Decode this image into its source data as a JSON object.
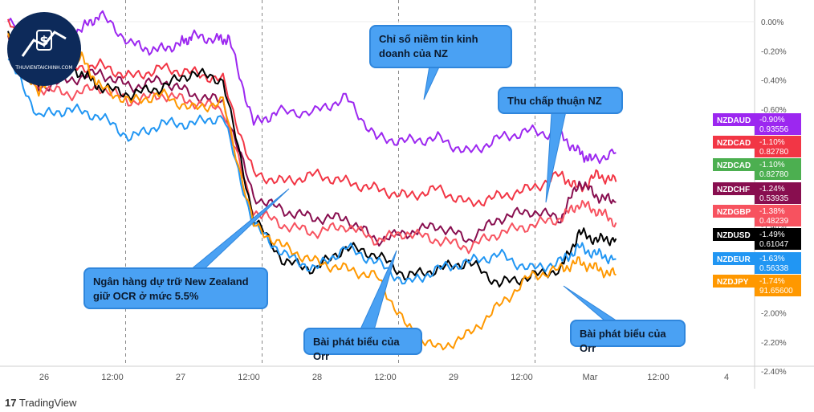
{
  "chart_data": {
    "type": "line",
    "title": "",
    "xlabel": "",
    "ylabel": "",
    "x_ticks": [
      "26",
      "12:00",
      "27",
      "12:00",
      "28",
      "12:00",
      "29",
      "12:00",
      "Mar",
      "12:00",
      "4"
    ],
    "y_ticks": [
      "0.00%",
      "-0.20%",
      "-0.40%",
      "-0.60%",
      "-0.80%",
      "-1.00%",
      "-1.20%",
      "-1.40%",
      "-1.60%",
      "-1.80%",
      "-2.00%",
      "-2.20%",
      "-2.40%"
    ],
    "ylim": [
      -2.4,
      0.05
    ],
    "x_range": [
      0,
      11
    ],
    "grid": "dashed vertical lines at each day boundary",
    "series": [
      {
        "name": "NZDAUD",
        "pct": "-0.90%",
        "price": "0.93556",
        "color": "#9c27f0",
        "x": [
          0,
          0.5,
          0.8,
          1.2,
          1.5,
          2.0,
          2.4,
          2.8,
          3.0,
          3.4,
          3.6,
          4.0,
          4.4,
          5.0,
          5.5,
          6.0,
          6.5,
          7.0,
          7.5,
          8.0,
          8.5,
          9.0,
          9.3,
          9.5,
          9.9
        ],
        "y": [
          0.0,
          -0.15,
          -0.12,
          -0.05,
          0.05,
          -0.15,
          -0.2,
          -0.15,
          -0.1,
          -0.12,
          -0.12,
          -0.7,
          -0.62,
          -0.62,
          -0.52,
          -0.8,
          -0.82,
          -0.8,
          -0.9,
          -0.8,
          -0.75,
          -0.78,
          -0.9,
          -0.95,
          -0.9
        ]
      },
      {
        "name": "NZDCAD",
        "pct": "-1.10%",
        "price": "0.82780",
        "color": "#f23645",
        "x": [
          0,
          0.5,
          1.0,
          1.5,
          2.0,
          2.5,
          3.0,
          3.5,
          4.0,
          4.5,
          5.0,
          5.5,
          6.0,
          6.5,
          7.0,
          7.5,
          8.0,
          8.5,
          9.0,
          9.3,
          9.6,
          9.9
        ],
        "y": [
          0.0,
          -0.35,
          -0.32,
          -0.3,
          -0.38,
          -0.32,
          -0.35,
          -0.4,
          -1.05,
          -1.1,
          -1.05,
          -1.1,
          -1.15,
          -1.2,
          -1.15,
          -1.25,
          -1.2,
          -1.15,
          -1.05,
          -1.15,
          -1.05,
          -1.1
        ]
      },
      {
        "name": "NZDCAD",
        "pct": "-1.10%",
        "price": "0.82780",
        "color": "#4caf50",
        "x": [
          0
        ],
        "y": [
          -1.1
        ]
      },
      {
        "name": "NZDCHF",
        "pct": "-1.24%",
        "price": "0.53935",
        "color": "#880e4f",
        "x": [
          0,
          0.5,
          1.0,
          1.5,
          2.0,
          2.5,
          3.0,
          3.5,
          4.0,
          4.5,
          5.0,
          5.5,
          6.0,
          6.5,
          7.0,
          7.5,
          8.0,
          8.5,
          9.0,
          9.3,
          9.6,
          9.9
        ],
        "y": [
          -0.1,
          -0.45,
          -0.4,
          -0.35,
          -0.45,
          -0.4,
          -0.5,
          -0.55,
          -1.2,
          -1.3,
          -1.35,
          -1.35,
          -1.5,
          -1.45,
          -1.4,
          -1.5,
          -1.35,
          -1.3,
          -1.35,
          -1.1,
          -1.2,
          -1.24
        ]
      },
      {
        "name": "NZDGBP",
        "pct": "-1.38%",
        "price": "0.48239",
        "color": "#f7525f",
        "x": [
          0,
          0.5,
          1.0,
          1.5,
          2.0,
          2.5,
          3.0,
          3.5,
          4.0,
          4.5,
          5.0,
          5.5,
          6.0,
          6.5,
          7.0,
          7.5,
          8.0,
          8.5,
          9.0,
          9.3,
          9.6,
          9.9
        ],
        "y": [
          -0.2,
          -0.45,
          -0.5,
          -0.45,
          -0.55,
          -0.5,
          -0.55,
          -0.6,
          -1.3,
          -1.4,
          -1.45,
          -1.4,
          -1.5,
          -1.45,
          -1.5,
          -1.55,
          -1.45,
          -1.4,
          -1.35,
          -1.25,
          -1.3,
          -1.38
        ]
      },
      {
        "name": "NZDUSD",
        "pct": "-1.49%",
        "price": "0.61047",
        "color": "#000000",
        "x": [
          0,
          0.5,
          0.8,
          1.2,
          1.5,
          2.0,
          2.5,
          3.0,
          3.5,
          4.0,
          4.5,
          5.0,
          5.5,
          6.0,
          6.5,
          7.0,
          7.5,
          8.0,
          8.5,
          9.0,
          9.3,
          9.6,
          9.9
        ],
        "y": [
          -0.05,
          -0.4,
          -0.3,
          -0.35,
          -0.45,
          -0.5,
          -0.45,
          -0.35,
          -0.4,
          -1.35,
          -1.65,
          -1.7,
          -1.55,
          -1.6,
          -1.75,
          -1.7,
          -1.65,
          -1.8,
          -1.75,
          -1.7,
          -1.45,
          -1.5,
          -1.49
        ]
      },
      {
        "name": "NZDEUR",
        "pct": "-1.63%",
        "price": "0.56338",
        "color": "#2196f3",
        "x": [
          0,
          0.5,
          1.0,
          1.5,
          2.0,
          2.5,
          3.0,
          3.5,
          4.0,
          4.5,
          5.0,
          5.5,
          6.0,
          6.5,
          7.0,
          7.5,
          8.0,
          8.5,
          9.0,
          9.3,
          9.6,
          9.9
        ],
        "y": [
          -0.25,
          -0.65,
          -0.6,
          -0.65,
          -0.8,
          -0.7,
          -0.7,
          -0.65,
          -1.4,
          -1.6,
          -1.7,
          -1.55,
          -1.65,
          -1.8,
          -1.7,
          -1.65,
          -1.6,
          -1.7,
          -1.65,
          -1.55,
          -1.6,
          -1.63
        ]
      },
      {
        "name": "NZDJPY",
        "pct": "-1.74%",
        "price": "91.65600",
        "color": "#ff9800",
        "x": [
          0,
          0.5,
          0.8,
          1.2,
          1.5,
          2.0,
          2.5,
          3.0,
          3.5,
          4.0,
          4.5,
          5.0,
          5.5,
          6.0,
          6.5,
          7.0,
          7.5,
          8.0,
          8.5,
          9.0,
          9.3,
          9.6,
          9.9
        ],
        "y": [
          -0.1,
          -0.5,
          -0.3,
          -0.25,
          -0.45,
          -0.55,
          -0.5,
          -0.6,
          -0.55,
          -1.4,
          -1.55,
          -1.65,
          -1.7,
          -1.75,
          -2.1,
          -2.25,
          -2.15,
          -1.95,
          -1.75,
          -1.7,
          -1.65,
          -1.7,
          -1.74
        ]
      }
    ],
    "annotations": [
      {
        "text": "Ngân hàng dự trữ New Zealand giữ OCR ở mức 5.5%",
        "anchor_x": 4.1,
        "anchor_y": -1.15
      },
      {
        "text": "Chỉ số niềm tin kinh doanh của NZ",
        "anchor_x": 6.0,
        "anchor_y": -0.54
      },
      {
        "text": "Thu chấp thuận NZ",
        "anchor_x": 7.9,
        "anchor_y": -1.28
      },
      {
        "text": "Bài phát biểu của Orr",
        "anchor_x": 5.6,
        "anchor_y": -1.55
      },
      {
        "text": "Bài phát biểu của Orr",
        "anchor_x": 7.9,
        "anchor_y": -1.85
      }
    ]
  },
  "footer": {
    "brand": "TradingView"
  },
  "logo": {
    "text": "THUVIENTAICHINH.COM",
    "symbol": "$"
  }
}
